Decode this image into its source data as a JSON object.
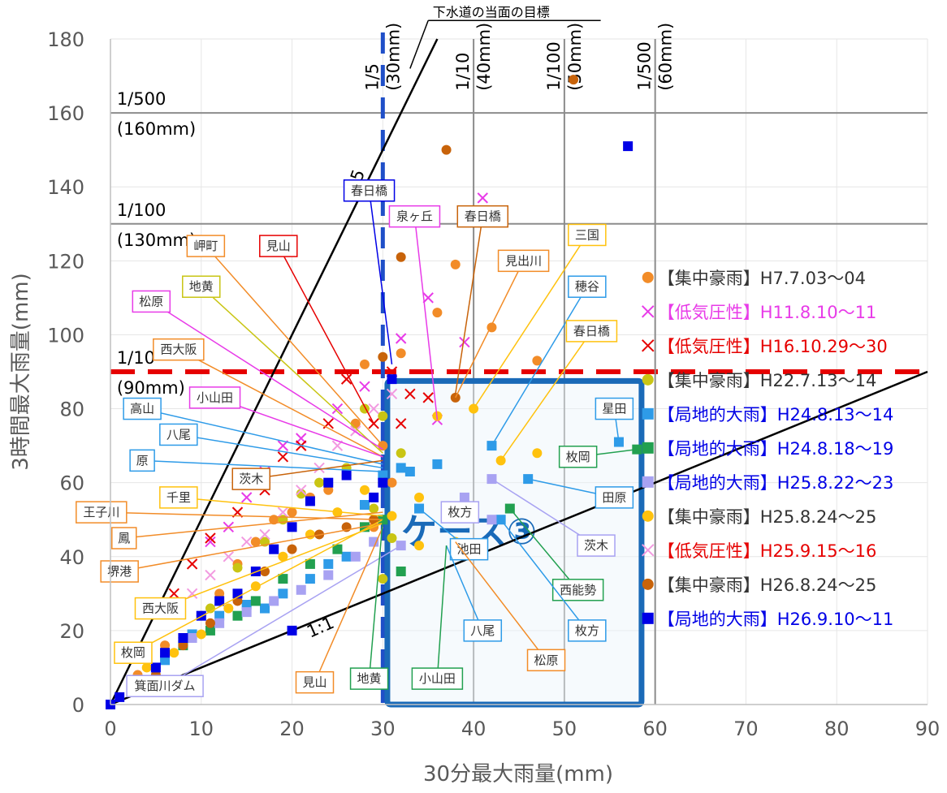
{
  "chart_data": {
    "type": "scatter",
    "xlabel": "30分最大雨量(mm)",
    "ylabel": "3時間最大雨量(mm)",
    "xlim": [
      0,
      90
    ],
    "ylim": [
      0,
      180
    ],
    "x_ticks": [
      "0",
      "10",
      "20",
      "30",
      "40",
      "50",
      "60",
      "70",
      "80",
      "90"
    ],
    "y_ticks": [
      "0",
      "20",
      "40",
      "60",
      "80",
      "100",
      "120",
      "140",
      "160",
      "180"
    ],
    "grid": false,
    "legend_position": "right",
    "colors": {
      "orange": "#F28C28",
      "red": "#E60000",
      "magenta": "#E83BE8",
      "olive": "#C9C514",
      "blue": "#2E9BE8",
      "green": "#22A050",
      "lavender": "#A8A2F2",
      "gold": "#FFC20E",
      "pink": "#F29AE0",
      "brown": "#C8630A",
      "navy": "#0000E6",
      "case_box": "#1A6AB8",
      "ref_blue": "#1F4FC8"
    },
    "series": [
      {
        "name": "【集中豪雨】H7.7.03～04",
        "marker": "circle",
        "color": "#F28C28",
        "legend_color": "#333333",
        "points": [
          [
            3,
            8
          ],
          [
            6,
            16
          ],
          [
            8,
            18
          ],
          [
            10,
            24
          ],
          [
            12,
            30
          ],
          [
            14,
            38
          ],
          [
            16,
            44
          ],
          [
            18,
            50
          ],
          [
            20,
            52
          ],
          [
            22,
            56
          ],
          [
            24,
            58
          ],
          [
            26,
            62
          ],
          [
            27,
            76
          ],
          [
            28,
            92
          ],
          [
            32,
            95
          ],
          [
            36,
            106
          ],
          [
            38,
            119
          ],
          [
            40,
            132
          ],
          [
            42,
            102
          ],
          [
            47,
            93
          ],
          [
            30,
            70
          ],
          [
            31,
            60
          ],
          [
            29,
            48
          ]
        ]
      },
      {
        "name": "【低気圧性】H11.8.10～11",
        "marker": "x",
        "color": "#E83BE8",
        "legend_color": "#E83BE8",
        "points": [
          [
            11,
            44
          ],
          [
            13,
            48
          ],
          [
            15,
            56
          ],
          [
            17,
            63
          ],
          [
            19,
            70
          ],
          [
            21,
            72
          ],
          [
            25,
            80
          ],
          [
            28,
            86
          ],
          [
            32,
            99
          ],
          [
            35,
            110
          ],
          [
            36,
            77
          ],
          [
            41,
            137
          ],
          [
            39,
            98
          ]
        ]
      },
      {
        "name": "【低気圧性】H16.10.29～30",
        "marker": "x",
        "color": "#E60000",
        "legend_color": "#E60000",
        "points": [
          [
            7,
            30
          ],
          [
            9,
            38
          ],
          [
            11,
            45
          ],
          [
            14,
            52
          ],
          [
            17,
            58
          ],
          [
            19,
            67
          ],
          [
            21,
            70
          ],
          [
            24,
            76
          ],
          [
            26,
            88
          ],
          [
            29,
            76
          ],
          [
            31,
            90
          ],
          [
            32,
            76
          ],
          [
            33,
            84
          ],
          [
            35,
            83
          ]
        ]
      },
      {
        "name": "【集中豪雨】H22.7.13～14",
        "marker": "circle",
        "color": "#C9C514",
        "legend_color": "#333333",
        "points": [
          [
            5,
            10
          ],
          [
            8,
            18
          ],
          [
            11,
            26
          ],
          [
            14,
            37
          ],
          [
            17,
            44
          ],
          [
            19,
            50
          ],
          [
            21,
            57
          ],
          [
            23,
            60
          ],
          [
            26,
            64
          ],
          [
            28,
            80
          ],
          [
            30,
            78
          ],
          [
            32,
            68
          ],
          [
            29,
            53
          ],
          [
            31,
            45
          ],
          [
            30,
            34
          ]
        ]
      },
      {
        "name": "【局地的大雨】H24.8.13～14",
        "marker": "square",
        "color": "#2E9BE8",
        "legend_color": "#0000E6",
        "points": [
          [
            6,
            12
          ],
          [
            9,
            19
          ],
          [
            12,
            24
          ],
          [
            15,
            27
          ],
          [
            17,
            26
          ],
          [
            19,
            30
          ],
          [
            22,
            34
          ],
          [
            24,
            38
          ],
          [
            26,
            40
          ],
          [
            28,
            54
          ],
          [
            30,
            62
          ],
          [
            32,
            64
          ],
          [
            33,
            63
          ],
          [
            36,
            65
          ],
          [
            34,
            53
          ],
          [
            42,
            70
          ],
          [
            46,
            61
          ],
          [
            56,
            71
          ],
          [
            43,
            50
          ]
        ]
      },
      {
        "name": "【局地的大雨】H24.8.18～19",
        "marker": "square",
        "color": "#22A050",
        "legend_color": "#0000E6",
        "points": [
          [
            8,
            16
          ],
          [
            11,
            20
          ],
          [
            14,
            24
          ],
          [
            16,
            28
          ],
          [
            19,
            34
          ],
          [
            22,
            38
          ],
          [
            25,
            42
          ],
          [
            28,
            48
          ],
          [
            30,
            50
          ],
          [
            32,
            36
          ],
          [
            44,
            53
          ],
          [
            58,
            69
          ]
        ]
      },
      {
        "name": "【局地的大雨】H25.8.22～23",
        "marker": "square",
        "color": "#A8A2F2",
        "legend_color": "#0000E6",
        "points": [
          [
            9,
            18
          ],
          [
            12,
            22
          ],
          [
            15,
            25
          ],
          [
            18,
            28
          ],
          [
            21,
            31
          ],
          [
            24,
            35
          ],
          [
            27,
            40
          ],
          [
            29,
            44
          ],
          [
            32,
            43
          ],
          [
            39,
            56
          ],
          [
            42,
            61
          ],
          [
            42,
            50
          ]
        ]
      },
      {
        "name": "【集中豪雨】H25.8.24～25",
        "marker": "circle",
        "color": "#FFC20E",
        "legend_color": "#333333",
        "points": [
          [
            4,
            10
          ],
          [
            7,
            14
          ],
          [
            10,
            19
          ],
          [
            13,
            26
          ],
          [
            16,
            32
          ],
          [
            19,
            40
          ],
          [
            22,
            46
          ],
          [
            25,
            52
          ],
          [
            28,
            58
          ],
          [
            30,
            60
          ],
          [
            31,
            51
          ],
          [
            34,
            56
          ],
          [
            34,
            43
          ],
          [
            38,
            44
          ],
          [
            40,
            80
          ],
          [
            43,
            66
          ],
          [
            47,
            68
          ],
          [
            36,
            78
          ]
        ]
      },
      {
        "name": "【低気圧性】H25.9.15～16",
        "marker": "x",
        "color": "#F29AE0",
        "legend_color": "#E60000",
        "points": [
          [
            9,
            30
          ],
          [
            11,
            35
          ],
          [
            13,
            40
          ],
          [
            15,
            44
          ],
          [
            17,
            46
          ],
          [
            19,
            52
          ],
          [
            21,
            58
          ],
          [
            23,
            64
          ],
          [
            25,
            70
          ],
          [
            27,
            74
          ],
          [
            29,
            80
          ],
          [
            31,
            84
          ]
        ]
      },
      {
        "name": "【集中豪雨】H26.8.24～25",
        "marker": "circle",
        "color": "#C8630A",
        "legend_color": "#333333",
        "points": [
          [
            5,
            8
          ],
          [
            8,
            16
          ],
          [
            11,
            22
          ],
          [
            14,
            28
          ],
          [
            17,
            36
          ],
          [
            20,
            42
          ],
          [
            23,
            46
          ],
          [
            26,
            48
          ],
          [
            29,
            50
          ],
          [
            30,
            94
          ],
          [
            32,
            121
          ],
          [
            37,
            150
          ],
          [
            38,
            83
          ],
          [
            51,
            169
          ]
        ]
      },
      {
        "name": "【局地的大雨】H26.9.10～11",
        "marker": "square",
        "color": "#0000E6",
        "legend_color": "#0000E6",
        "points": [
          [
            0,
            0
          ],
          [
            1,
            2
          ],
          [
            3,
            6
          ],
          [
            5,
            10
          ],
          [
            6,
            14
          ],
          [
            8,
            18
          ],
          [
            10,
            24
          ],
          [
            12,
            28
          ],
          [
            14,
            30
          ],
          [
            16,
            36
          ],
          [
            18,
            42
          ],
          [
            20,
            48
          ],
          [
            22,
            55
          ],
          [
            24,
            60
          ],
          [
            26,
            62
          ],
          [
            29,
            56
          ],
          [
            30,
            60
          ],
          [
            31,
            88
          ],
          [
            57,
            151
          ],
          [
            20,
            20
          ]
        ]
      }
    ],
    "annotations": {
      "target_label": "下水道の当面の目標",
      "line_1_5": "1:5",
      "line_1_1": "1:1",
      "case_label": "ケース③",
      "h_refs": [
        {
          "y": 160,
          "line1": "1/500",
          "line2": "(160mm)"
        },
        {
          "y": 130,
          "line1": "1/100",
          "line2": "(130mm)"
        },
        {
          "y": 90,
          "line1": "1/10",
          "line2": "(90mm)"
        }
      ],
      "v_refs": [
        {
          "x": 30,
          "line1": "1/5",
          "line2": "(30mm)"
        },
        {
          "x": 40,
          "line1": "1/10",
          "line2": "(40mm)"
        },
        {
          "x": 50,
          "line1": "1/100",
          "line2": "(50mm)"
        },
        {
          "x": 60,
          "line1": "1/500",
          "line2": "(60mm)"
        }
      ],
      "callouts": [
        {
          "text": "春日橋",
          "color": "#0000E6",
          "tx": 28.5,
          "ty": 139,
          "ax": 31,
          "ay": 92
        },
        {
          "text": "泉ヶ丘",
          "color": "#E83BE8",
          "tx": 33.5,
          "ty": 132,
          "ax": 36,
          "ay": 77
        },
        {
          "text": "春日橋",
          "color": "#C8630A",
          "tx": 41,
          "ty": 132,
          "ax": 38,
          "ay": 84
        },
        {
          "text": "三国",
          "color": "#FFC20E",
          "tx": 52.5,
          "ty": 127,
          "ax": 40,
          "ay": 80
        },
        {
          "text": "見出川",
          "color": "#F28C28",
          "tx": 45.5,
          "ty": 120,
          "ax": 38,
          "ay": 83
        },
        {
          "text": "岬町",
          "color": "#F28C28",
          "tx": 10.5,
          "ty": 124,
          "ax": 30,
          "ay": 70
        },
        {
          "text": "見山",
          "color": "#E60000",
          "tx": 18.5,
          "ty": 124,
          "ax": 29,
          "ay": 76
        },
        {
          "text": "穂谷",
          "color": "#2E9BE8",
          "tx": 52.5,
          "ty": 113,
          "ax": 42,
          "ay": 70
        },
        {
          "text": "地黄",
          "color": "#C9C514",
          "tx": 10,
          "ty": 113,
          "ax": 30,
          "ay": 68
        },
        {
          "text": "松原",
          "color": "#E83BE8",
          "tx": 4.5,
          "ty": 109,
          "ax": 30,
          "ay": 69
        },
        {
          "text": "春日橋",
          "color": "#FFC20E",
          "tx": 53,
          "ty": 101,
          "ax": 43,
          "ay": 66
        },
        {
          "text": "西大阪",
          "color": "#F28C28",
          "tx": 7.5,
          "ty": 96,
          "ax": 30,
          "ay": 67
        },
        {
          "text": "小山田",
          "color": "#E83BE8",
          "tx": 11.5,
          "ty": 83,
          "ax": 30,
          "ay": 67
        },
        {
          "text": "高山",
          "color": "#2E9BE8",
          "tx": 3.5,
          "ty": 80,
          "ax": 30,
          "ay": 65
        },
        {
          "text": "八尾",
          "color": "#2E9BE8",
          "tx": 7.5,
          "ty": 73,
          "ax": 30,
          "ay": 64
        },
        {
          "text": "星田",
          "color": "#2E9BE8",
          "tx": 55.5,
          "ty": 80,
          "ax": 56,
          "ay": 71
        },
        {
          "text": "原",
          "color": "#2E9BE8",
          "tx": 3.5,
          "ty": 66,
          "ax": 30,
          "ay": 63
        },
        {
          "text": "枚岡",
          "color": "#22A050",
          "tx": 51.5,
          "ty": 67,
          "ax": 58,
          "ay": 69
        },
        {
          "text": "茨木",
          "color": "#C8630A",
          "tx": 15.5,
          "ty": 61,
          "ax": 30,
          "ay": 66
        },
        {
          "text": "千里",
          "color": "#FFC20E",
          "tx": 7.5,
          "ty": 56,
          "ax": 30,
          "ay": 51
        },
        {
          "text": "田原",
          "color": "#2E9BE8",
          "tx": 55.5,
          "ty": 56,
          "ax": 46,
          "ay": 61
        },
        {
          "text": "王子川",
          "color": "#F28C28",
          "tx": -1,
          "ty": 52,
          "ax": 30,
          "ay": 50
        },
        {
          "text": "枚方",
          "color": "#A8A2F2",
          "tx": 38.5,
          "ty": 52,
          "ax": 39,
          "ay": 56
        },
        {
          "text": "鳳",
          "color": "#F28C28",
          "tx": 1.5,
          "ty": 45,
          "ax": 30,
          "ay": 52
        },
        {
          "text": "池田",
          "color": "#2E9BE8",
          "tx": 39.5,
          "ty": 42,
          "ax": 34,
          "ay": 53
        },
        {
          "text": "茨木",
          "color": "#A8A2F2",
          "tx": 53.5,
          "ty": 43,
          "ax": 42,
          "ay": 61
        },
        {
          "text": "堺港",
          "color": "#F28C28",
          "tx": 1,
          "ty": 36,
          "ax": 30,
          "ay": 49
        },
        {
          "text": "西能勢",
          "color": "#22A050",
          "tx": 51.5,
          "ty": 31,
          "ax": 44,
          "ay": 53
        },
        {
          "text": "西大阪",
          "color": "#FFC20E",
          "tx": 5.5,
          "ty": 26,
          "ax": 30,
          "ay": 49
        },
        {
          "text": "八尾",
          "color": "#2E9BE8",
          "tx": 41,
          "ty": 20,
          "ax": 37,
          "ay": 43
        },
        {
          "text": "枚方",
          "color": "#2E9BE8",
          "tx": 52.5,
          "ty": 20,
          "ax": 43,
          "ay": 50
        },
        {
          "text": "枚岡",
          "color": "#FFC20E",
          "tx": 2.5,
          "ty": 14,
          "ax": 30,
          "ay": 50
        },
        {
          "text": "松原",
          "color": "#F28C28",
          "tx": 48,
          "ty": 12,
          "ax": 38,
          "ay": 44
        },
        {
          "text": "箕面川ダム",
          "color": "#A8A2F2",
          "tx": 6,
          "ty": 5,
          "ax": 32,
          "ay": 43
        },
        {
          "text": "見山",
          "color": "#F28C28",
          "tx": 22.5,
          "ty": 6,
          "ax": 30,
          "ay": 48
        },
        {
          "text": "地黄",
          "color": "#22A050",
          "tx": 28.5,
          "ty": 7,
          "ax": 30,
          "ay": 50
        },
        {
          "text": "小山田",
          "color": "#22A050",
          "tx": 36,
          "ty": 7,
          "ax": 37,
          "ay": 43
        }
      ]
    }
  }
}
